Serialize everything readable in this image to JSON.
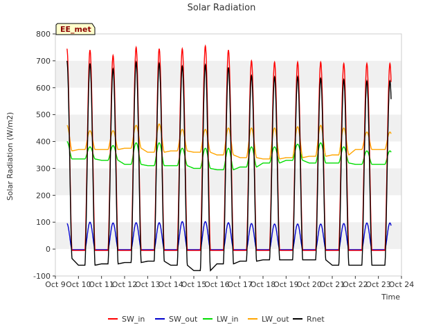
{
  "chart_data": {
    "type": "line",
    "title": "Solar Radiation",
    "xlabel": "Time",
    "ylabel": "Solar Radiation (W/m2)",
    "badge": "EE_met",
    "xlim": [
      "Oct 9",
      "Oct 24"
    ],
    "ylim": [
      -100,
      800
    ],
    "x_ticks": [
      "Oct 9",
      "Oct 10",
      "Oct 11",
      "Oct 12",
      "Oct 13",
      "Oct 14",
      "Oct 15",
      "Oct 16",
      "Oct 17",
      "Oct 18",
      "Oct 19",
      "Oct 20",
      "Oct 21",
      "Oct 22",
      "Oct 23",
      "Oct 24"
    ],
    "y_ticks": [
      "-100",
      "0",
      "100",
      "200",
      "300",
      "400",
      "500",
      "600",
      "700",
      "800"
    ],
    "grid": "horizontal bands",
    "legend_position": "bottom",
    "series": [
      {
        "name": "SW_in",
        "color": "#ff0000",
        "night_value": -5,
        "daily_peaks": [
          745,
          740,
          720,
          750,
          745,
          745,
          755,
          740,
          700,
          695,
          695,
          695,
          690,
          690
        ]
      },
      {
        "name": "SW_out",
        "color": "#0000cc",
        "night_value": -2,
        "daily_peaks": [
          95,
          100,
          97,
          98,
          98,
          102,
          102,
          98,
          95,
          93,
          93,
          93,
          95,
          97
        ]
      },
      {
        "name": "LW_in",
        "color": "#00dd00",
        "daily_night_values": [
          335,
          335,
          330,
          315,
          310,
          310,
          300,
          295,
          305,
          320,
          330,
          320,
          320,
          315
        ],
        "daily_peaks": [
          400,
          380,
          385,
          395,
          395,
          375,
          375,
          375,
          380,
          380,
          390,
          395,
          380,
          365
        ]
      },
      {
        "name": "LW_out",
        "color": "#ffa500",
        "daily_night_values": [
          365,
          370,
          370,
          375,
          360,
          365,
          360,
          350,
          340,
          335,
          340,
          345,
          350,
          370
        ],
        "daily_peaks": [
          460,
          440,
          440,
          460,
          465,
          445,
          445,
          450,
          450,
          450,
          455,
          460,
          450,
          435
        ]
      },
      {
        "name": "Rnet",
        "color": "#000000",
        "daily_night_values": [
          -35,
          -60,
          -55,
          -50,
          -45,
          -60,
          -80,
          -55,
          -45,
          -40,
          -40,
          -40,
          -60,
          -60
        ],
        "daily_peaks": [
          700,
          690,
          670,
          695,
          690,
          680,
          685,
          675,
          645,
          640,
          640,
          635,
          630,
          625
        ]
      }
    ]
  }
}
